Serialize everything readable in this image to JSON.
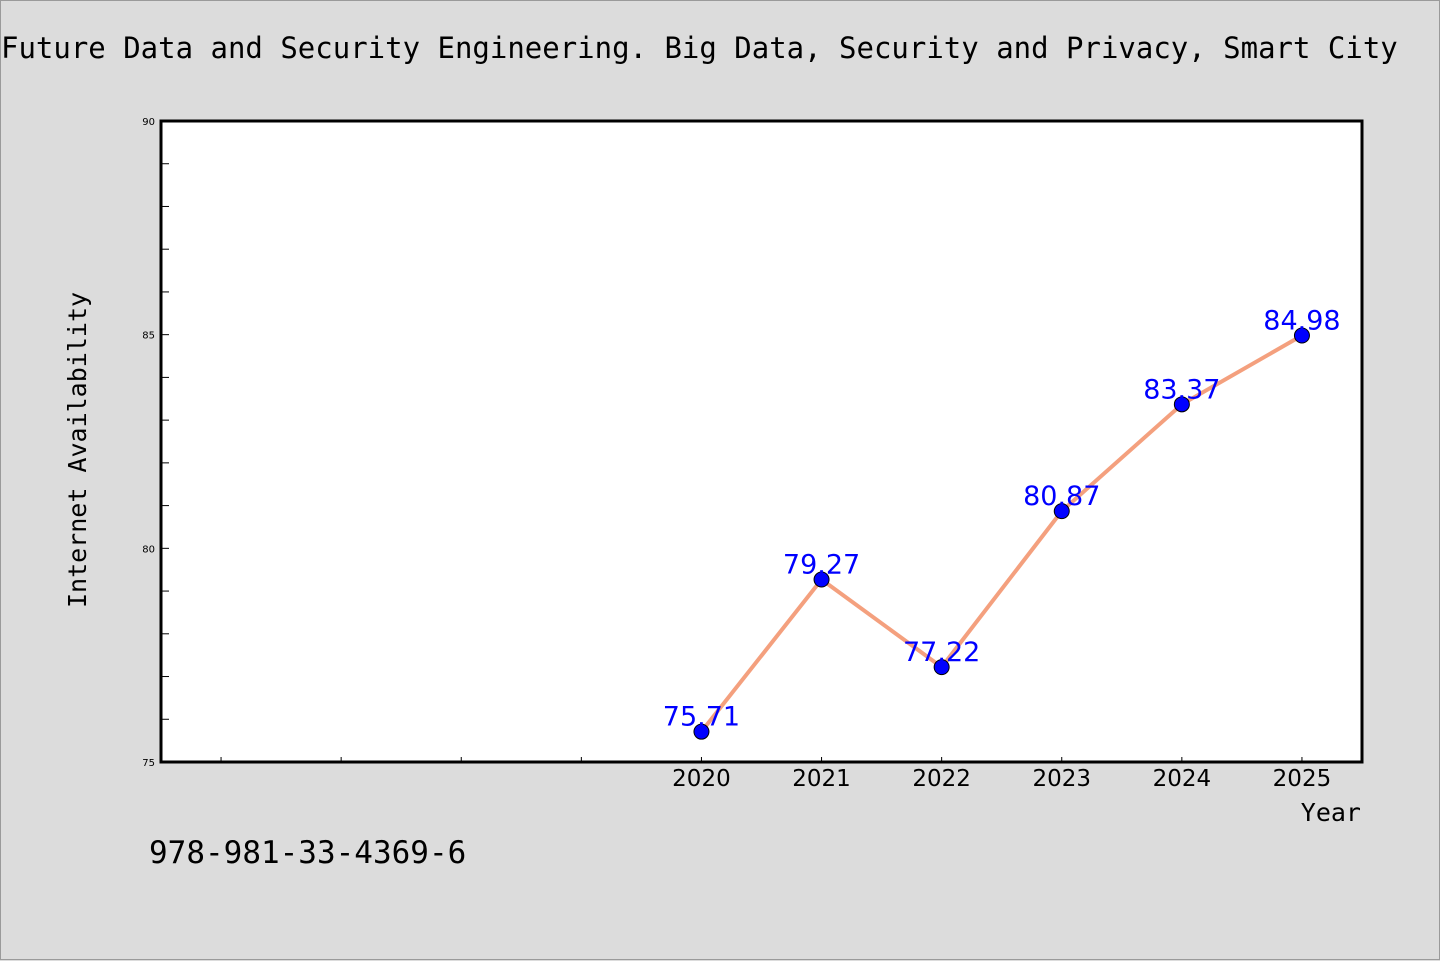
{
  "chart_data": {
    "type": "line",
    "title": "Future Data and Security Engineering. Big Data, Security and Privacy, Smart City",
    "xlabel": "Year",
    "ylabel": "Internet Availability",
    "x": [
      "2020",
      "2021",
      "2022",
      "2023",
      "2024",
      "2025"
    ],
    "series": [
      {
        "values": [
          75.71,
          79.27,
          77.22,
          80.87,
          83.37,
          84.98
        ]
      }
    ],
    "data_labels": [
      "75.71",
      "79.27",
      "77.22",
      "80.87",
      "83.37",
      "84.98"
    ],
    "ylim": [
      75,
      90
    ],
    "yticks": [
      "75",
      "80",
      "85",
      "90"
    ],
    "grid": false,
    "line_color": "#f4a07e",
    "marker_color": "#0000ff",
    "label_color": "#0000ff"
  },
  "footer": {
    "isbn": "978-981-33-4369-6"
  }
}
